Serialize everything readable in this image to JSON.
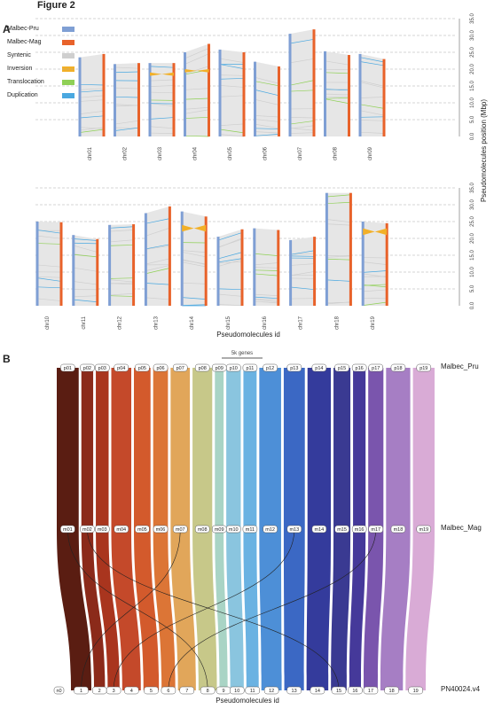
{
  "figure_title": "Figure 2",
  "panel_a_letter": "A",
  "panel_b_letter": "B",
  "chart_data": [
    {
      "type": "bar",
      "panel": "A",
      "ylabel": "Pseudomolecules position (Mbp)",
      "xlabel": "Pseudomolecules id",
      "yticks": [
        "0.0",
        "5.0",
        "10.0",
        "15.0",
        "20.0",
        "25.0",
        "30.0",
        "35.0"
      ],
      "legend": [
        {
          "label": "Malbec-Pru",
          "color": "#7f9fd4"
        },
        {
          "label": "Malbec-Mag",
          "color": "#e8622a"
        },
        {
          "label": "Syntenic",
          "color": "#cfcfcf"
        },
        {
          "label": "Inversion",
          "color": "#f2b028"
        },
        {
          "label": "Translocation",
          "color": "#8fd056"
        },
        {
          "label": "Duplication",
          "color": "#4aa8e0"
        }
      ],
      "categories": [
        "chr01",
        "chr02",
        "chr03",
        "chr04",
        "chr05",
        "chr06",
        "chr07",
        "chr08",
        "chr09",
        "chr10",
        "chr11",
        "chr12",
        "chr13",
        "chr14",
        "chr15",
        "chr16",
        "chr17",
        "chr18",
        "chr19"
      ],
      "series": [
        {
          "name": "Malbec-Pru",
          "values": [
            23.5,
            21.5,
            21.8,
            25.0,
            25.8,
            22.2,
            30.5,
            25.3,
            24.5,
            25.0,
            21.0,
            24.0,
            27.5,
            28.0,
            20.5,
            23.0,
            19.5,
            33.5,
            25.0
          ]
        },
        {
          "name": "Malbec-Mag",
          "values": [
            24.5,
            21.8,
            21.8,
            27.5,
            25.0,
            20.8,
            31.8,
            24.2,
            23.0,
            24.8,
            19.8,
            24.2,
            29.5,
            26.5,
            22.7,
            22.5,
            20.5,
            33.5,
            24.5
          ]
        }
      ]
    },
    {
      "type": "diagram",
      "panel": "B",
      "scale_label": "5k genes",
      "xlabel": "Pseudomolecules id",
      "row_labels": [
        "Malbec_Pru",
        "Malbec_Mag",
        "PN40024.v4"
      ],
      "top_labels": [
        "p01",
        "p02",
        "p03",
        "p04",
        "p05",
        "p06",
        "p07",
        "p08",
        "p09",
        "p10",
        "p11",
        "p12",
        "p13",
        "p14",
        "p15",
        "p16",
        "p17",
        "p18",
        "p19"
      ],
      "mid_labels": [
        "m01",
        "m02",
        "m03",
        "m04",
        "m05",
        "m06",
        "m07",
        "m08",
        "m09",
        "m10",
        "m11",
        "m12",
        "m13",
        "m14",
        "m15",
        "m16",
        "m17",
        "m18",
        "m19"
      ],
      "bottom_labels": [
        "n0",
        "1",
        "2",
        "3",
        "4",
        "5",
        "6",
        "7",
        "8",
        "9",
        "10",
        "11",
        "12",
        "13",
        "14",
        "15",
        "16",
        "17",
        "18",
        "19"
      ],
      "colors": [
        "#5a1d12",
        "#8b2a1a",
        "#a9351e",
        "#c4492a",
        "#d35a2c",
        "#dc7536",
        "#e1a65a",
        "#c7c889",
        "#a9d4c5",
        "#8ac5df",
        "#6ab2e2",
        "#4d8fd7",
        "#3b68c4",
        "#343b9c",
        "#3a3a92",
        "#45399a",
        "#7a55ad",
        "#a67ec4",
        "#d9abd6"
      ],
      "flow_values": [
        15.6,
        8.4,
        9.1,
        14.2,
        11.8,
        10.5,
        13.7,
        14.0,
        6.2,
        10.3,
        9.4,
        15.5,
        15.0,
        16.6,
        12.0,
        8.9,
        10.8,
        17.2,
        15.4
      ]
    }
  ]
}
